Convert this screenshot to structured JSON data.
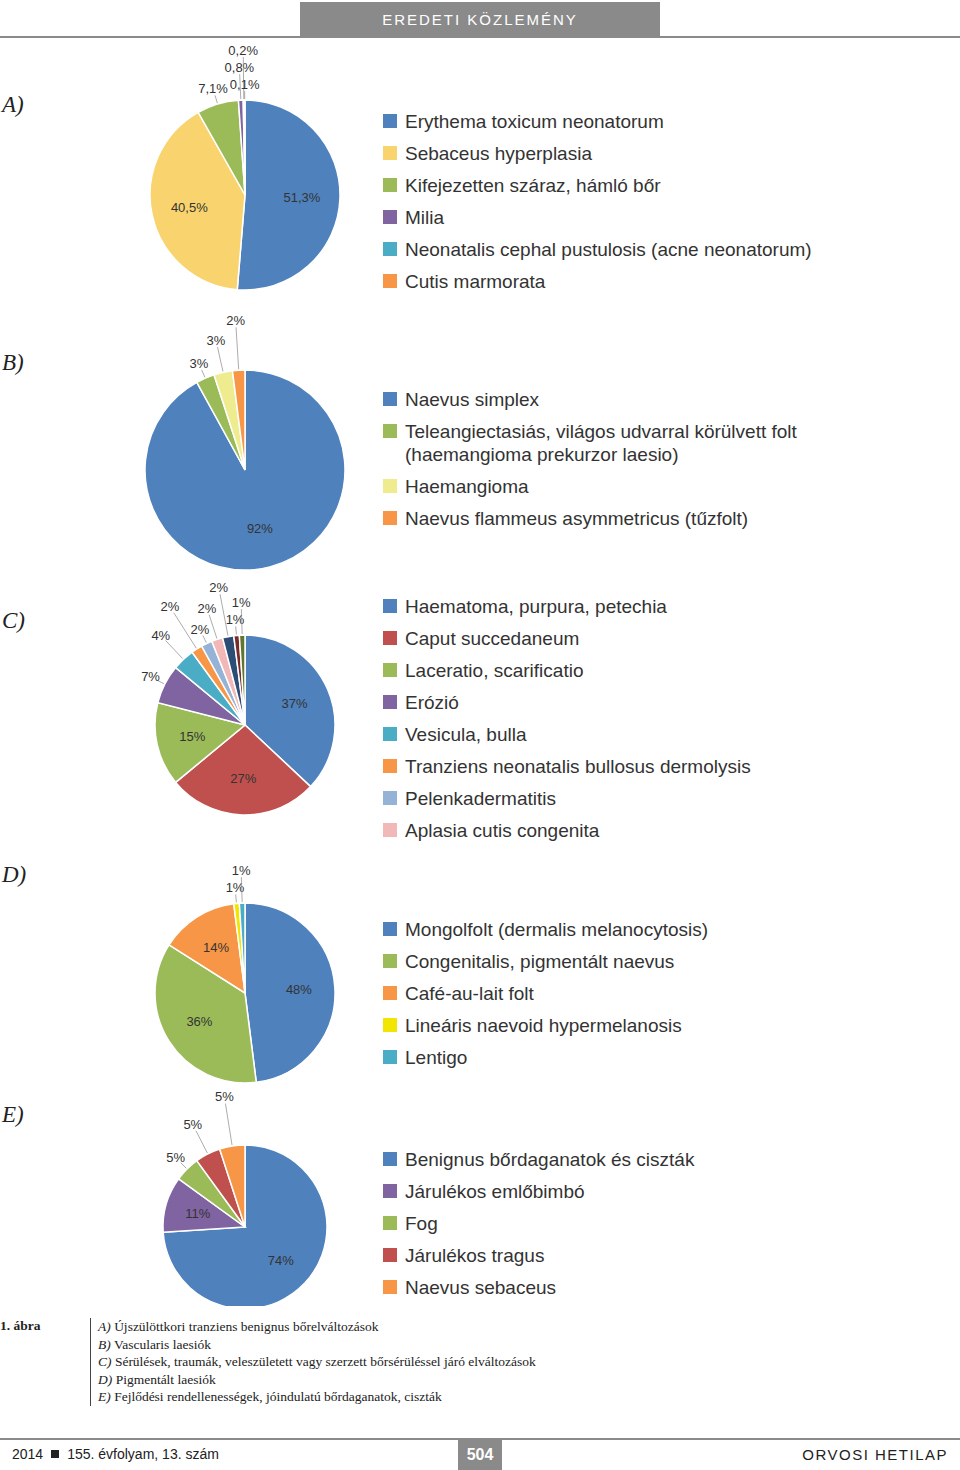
{
  "header": "EREDETI KÖZLEMÉNY",
  "chart_data": [
    {
      "type": "pie",
      "label": "A)",
      "legend": "right",
      "data_labels": true,
      "categories": [
        "Erythema toxicum neonatorum",
        "Sebaceus hyperplasia",
        "Kifejezetten száraz, hámló bőr",
        "Milia",
        "Neonatalis cephal pustulosis (acne neonatorum)",
        "Cutis marmorata"
      ],
      "values": [
        51.3,
        40.5,
        7.1,
        0.8,
        0.2,
        0.1
      ],
      "value_labels": [
        "51,3%",
        "40,5%",
        "7,1%",
        "0,8%",
        "0,2%",
        "0,1%"
      ],
      "colors": [
        "#4f81bd",
        "#f9d36e",
        "#9bbb59",
        "#8064a2",
        "#4bacc6",
        "#f79646"
      ]
    },
    {
      "type": "pie",
      "label": "B)",
      "legend": "right",
      "data_labels": true,
      "categories": [
        "Naevus simplex",
        "Teleangiectasiás, világos udvarral körülvett folt (haemangioma prekurzor laesio)",
        "Haemangioma",
        "Naevus flammeus asymmetricus (tűzfolt)"
      ],
      "values": [
        92,
        3,
        3,
        2
      ],
      "value_labels": [
        "92%",
        "3%",
        "3%",
        "2%"
      ],
      "colors": [
        "#4f81bd",
        "#9bbb59",
        "#eeec8f",
        "#f79646"
      ]
    },
    {
      "type": "pie",
      "label": "C)",
      "legend": "right",
      "data_labels": true,
      "categories": [
        "Haematoma, purpura, petechia",
        "Caput succedaneum",
        "Laceratio, scarificatio",
        "Erózió",
        "Vesicula, bulla",
        "Tranziens neonatalis bullosus dermolysis",
        "Pelenkadermatitis",
        "Aplasia cutis congenita",
        null,
        null,
        null
      ],
      "values": [
        37,
        27,
        15,
        7,
        4,
        2,
        2,
        2,
        2,
        1,
        1
      ],
      "value_labels": [
        "37%",
        "27%",
        "15%",
        "7%",
        "4%",
        "2%",
        "2%",
        "2%",
        "2%",
        "1%",
        "1%"
      ],
      "colors": [
        "#4f81bd",
        "#c0504d",
        "#9bbb59",
        "#8064a2",
        "#4bacc6",
        "#f79646",
        "#95b3d7",
        "#f2b8b8",
        "#2c4d75",
        "#772c2a",
        "#5f7530"
      ]
    },
    {
      "type": "pie",
      "label": "D)",
      "legend": "right",
      "data_labels": true,
      "categories": [
        "Mongolfolt (dermalis melanocytosis)",
        "Congenitalis, pigmentált naevus",
        "Café-au-lait folt",
        "Lineáris naevoid hypermelanosis",
        "Lentigo"
      ],
      "values": [
        48,
        36,
        14,
        1,
        1
      ],
      "value_labels": [
        "48%",
        "36%",
        "14%",
        "1%",
        "1%"
      ],
      "colors": [
        "#4f81bd",
        "#9bbb59",
        "#f79646",
        "#f2e600",
        "#4bacc6"
      ]
    },
    {
      "type": "pie",
      "label": "E)",
      "legend": "right",
      "data_labels": true,
      "categories": [
        "Benignus bőrdaganatok és ciszták",
        "Járulékos emlőbimbó",
        "Fog",
        "Járulékos tragus",
        "Naevus sebaceus"
      ],
      "values": [
        74,
        11,
        5,
        5,
        5
      ],
      "value_labels": [
        "74%",
        "11%",
        "5%",
        "5%",
        "5%"
      ],
      "colors": [
        "#4f81bd",
        "#8064a2",
        "#9bbb59",
        "#c0504d",
        "#f79646"
      ]
    }
  ],
  "caption": {
    "title": "1. ábra",
    "items": [
      {
        "letter": "A)",
        "text": "Újszülöttkori tranziens benignus bőrelváltozások"
      },
      {
        "letter": "B)",
        "text": "Vascularis laesiók"
      },
      {
        "letter": "C)",
        "text": "Sérülések, traumák, veleszületett vagy szerzett bőrsérüléssel járó elváltozások"
      },
      {
        "letter": "D)",
        "text": "Pigmentált laesiók"
      },
      {
        "letter": "E)",
        "text": "Fejlődési rendellenességek, jóindulatú bőrdaganatok, ciszták"
      }
    ]
  },
  "footer": {
    "year": "2014",
    "issue": "155. évfolyam, 13. szám",
    "page": "504",
    "journal": "ORVOSI HETILAP"
  }
}
